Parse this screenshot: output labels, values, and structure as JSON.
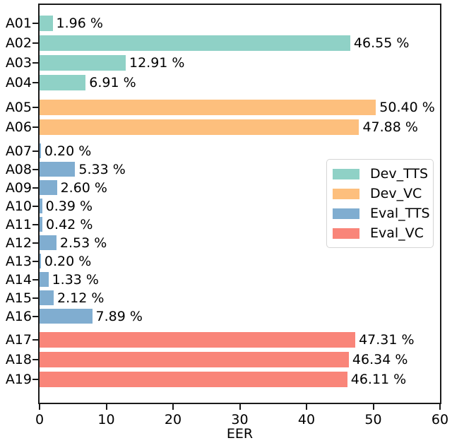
{
  "chart_data": {
    "type": "bar",
    "orientation": "horizontal",
    "title": "",
    "xlabel": "EER",
    "ylabel": "",
    "xlim": [
      0,
      60
    ],
    "xticks": [
      0,
      10,
      20,
      30,
      40,
      50,
      60
    ],
    "grid": false,
    "legend_position": "center-right",
    "series": [
      {
        "name": "Dev_TTS",
        "color": "#8fd1c6"
      },
      {
        "name": "Dev_VC",
        "color": "#fdbf7d"
      },
      {
        "name": "Eval_TTS",
        "color": "#80add0"
      },
      {
        "name": "Eval_VC",
        "color": "#f98579"
      }
    ],
    "bars": [
      {
        "category": "A01",
        "value": 1.96,
        "label": "1.96 %",
        "series": "Dev_TTS"
      },
      {
        "category": "A02",
        "value": 46.55,
        "label": "46.55 %",
        "series": "Dev_TTS"
      },
      {
        "category": "A03",
        "value": 12.91,
        "label": "12.91 %",
        "series": "Dev_TTS"
      },
      {
        "category": "A04",
        "value": 6.91,
        "label": "6.91 %",
        "series": "Dev_TTS"
      },
      {
        "category": "A05",
        "value": 50.4,
        "label": "50.40 %",
        "series": "Dev_VC"
      },
      {
        "category": "A06",
        "value": 47.88,
        "label": "47.88 %",
        "series": "Dev_VC"
      },
      {
        "category": "A07",
        "value": 0.2,
        "label": "0.20 %",
        "series": "Eval_TTS"
      },
      {
        "category": "A08",
        "value": 5.33,
        "label": "5.33 %",
        "series": "Eval_TTS"
      },
      {
        "category": "A09",
        "value": 2.6,
        "label": "2.60 %",
        "series": "Eval_TTS"
      },
      {
        "category": "A10",
        "value": 0.39,
        "label": "0.39 %",
        "series": "Eval_TTS"
      },
      {
        "category": "A11",
        "value": 0.42,
        "label": "0.42 %",
        "series": "Eval_TTS"
      },
      {
        "category": "A12",
        "value": 2.53,
        "label": "2.53 %",
        "series": "Eval_TTS"
      },
      {
        "category": "A13",
        "value": 0.2,
        "label": "0.20 %",
        "series": "Eval_TTS"
      },
      {
        "category": "A14",
        "value": 1.33,
        "label": "1.33 %",
        "series": "Eval_TTS"
      },
      {
        "category": "A15",
        "value": 2.12,
        "label": "2.12 %",
        "series": "Eval_TTS"
      },
      {
        "category": "A16",
        "value": 7.89,
        "label": "7.89 %",
        "series": "Eval_TTS"
      },
      {
        "category": "A17",
        "value": 47.31,
        "label": "47.31 %",
        "series": "Eval_VC"
      },
      {
        "category": "A18",
        "value": 46.34,
        "label": "46.34 %",
        "series": "Eval_VC"
      },
      {
        "category": "A19",
        "value": 46.11,
        "label": "46.11 %",
        "series": "Eval_VC"
      }
    ]
  }
}
